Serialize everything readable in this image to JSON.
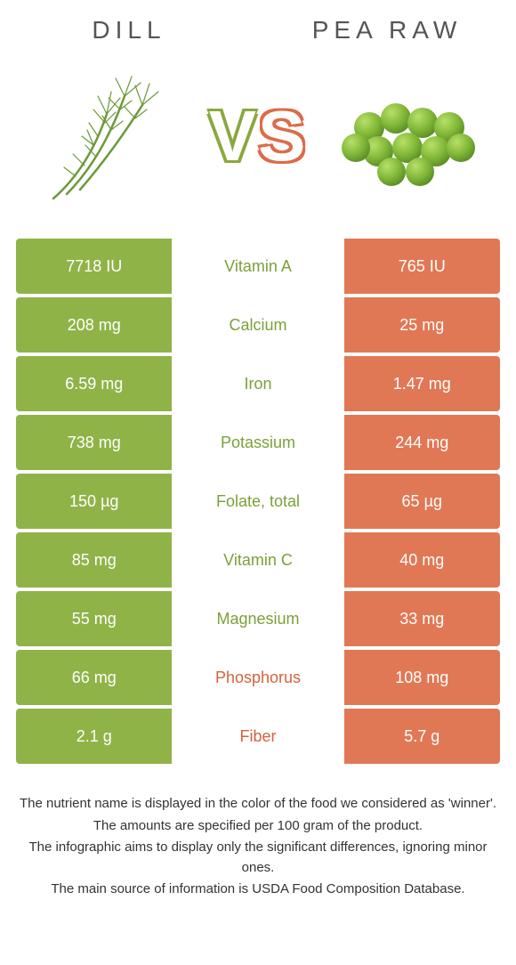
{
  "colors": {
    "left": "#90b348",
    "right": "#e17855",
    "nutrient_left_win": "#7ca03a",
    "nutrient_right_win": "#d3623f"
  },
  "header": {
    "left_title": "Dill",
    "right_title": "Pea raw",
    "vs_v": "V",
    "vs_s": "S"
  },
  "rows": [
    {
      "left": "7718 IU",
      "nutrient": "Vitamin A",
      "right": "765 IU",
      "winner": "left"
    },
    {
      "left": "208 mg",
      "nutrient": "Calcium",
      "right": "25 mg",
      "winner": "left"
    },
    {
      "left": "6.59 mg",
      "nutrient": "Iron",
      "right": "1.47 mg",
      "winner": "left"
    },
    {
      "left": "738 mg",
      "nutrient": "Potassium",
      "right": "244 mg",
      "winner": "left"
    },
    {
      "left": "150 µg",
      "nutrient": "Folate, total",
      "right": "65 µg",
      "winner": "left"
    },
    {
      "left": "85 mg",
      "nutrient": "Vitamin C",
      "right": "40 mg",
      "winner": "left"
    },
    {
      "left": "55 mg",
      "nutrient": "Magnesium",
      "right": "33 mg",
      "winner": "left"
    },
    {
      "left": "66 mg",
      "nutrient": "Phosphorus",
      "right": "108 mg",
      "winner": "right"
    },
    {
      "left": "2.1 g",
      "nutrient": "Fiber",
      "right": "5.7 g",
      "winner": "right"
    }
  ],
  "footer": {
    "line1": "The nutrient name is displayed in the color of the food we considered as 'winner'.",
    "line2": "The amounts are specified per 100 gram of the product.",
    "line3": "The infographic aims to display only the significant differences, ignoring minor ones.",
    "line4": "The main source of information is USDA Food Composition Database."
  }
}
